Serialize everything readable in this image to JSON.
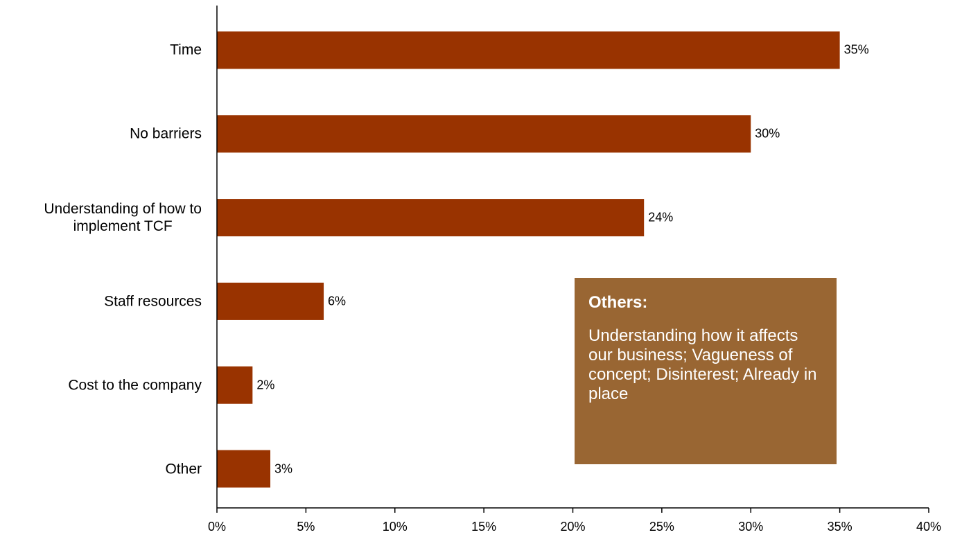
{
  "chart_data": {
    "type": "bar",
    "orientation": "horizontal",
    "categories": [
      "Time",
      "No barriers",
      "Understanding of how to\nimplement TCF",
      "Staff resources",
      "Cost to the company",
      "Other"
    ],
    "values": [
      35,
      30,
      24,
      6,
      2,
      3
    ],
    "data_labels": [
      "35%",
      "30%",
      "24%",
      "6%",
      "2%",
      "3%"
    ],
    "xlim": [
      0,
      40
    ],
    "xticks": [
      "0%",
      "5%",
      "10%",
      "15%",
      "20%",
      "25%",
      "30%",
      "35%",
      "40%"
    ],
    "bar_color": "#993300",
    "grid": false,
    "legend": "none"
  },
  "note": {
    "title": "Others:",
    "body": "Understanding how it affects our business; Vagueness of concept; Disinterest; Already in place",
    "background_color": "#996633",
    "text_color": "#ffffff"
  }
}
